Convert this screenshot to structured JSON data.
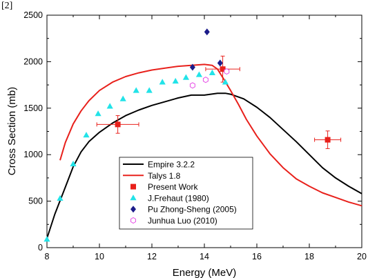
{
  "header_fragment": "[2]",
  "colors": {
    "empire": "#000000",
    "talys": "#e8201b",
    "present": "#e8201b",
    "frehaut": "#22e3e8",
    "pu": "#1c1c8a",
    "luo": "#e64ce6"
  },
  "chart_data": {
    "type": "line",
    "xlabel": "Energy (MeV)",
    "ylabel": "Cross Section (mb)",
    "xlim": [
      8,
      20
    ],
    "ylim": [
      0,
      2500
    ],
    "xticks": [
      8,
      10,
      12,
      14,
      16,
      18,
      20
    ],
    "yticks": [
      0,
      500,
      1000,
      1500,
      2000,
      2500
    ],
    "xtick_labels": [
      "8",
      "10",
      "12",
      "14",
      "16",
      "18",
      "20"
    ],
    "ytick_labels": [
      "0",
      "500",
      "1000",
      "1500",
      "2000",
      "2500"
    ],
    "grid": false,
    "legend_position": "bottom-center",
    "series": [
      {
        "name": "Empire 3.2.2",
        "kind": "line",
        "color": "#000000",
        "x": [
          8.0,
          8.3,
          8.7,
          9.0,
          9.3,
          9.6,
          10.0,
          10.5,
          11.0,
          11.5,
          12.0,
          12.5,
          13.0,
          13.5,
          14.0,
          14.5,
          14.8,
          15.0,
          15.5,
          16.0,
          16.5,
          17.0,
          17.5,
          18.0,
          18.5,
          19.0,
          19.5,
          20.0
        ],
        "y": [
          100,
          360,
          650,
          870,
          1030,
          1140,
          1240,
          1340,
          1420,
          1480,
          1530,
          1570,
          1610,
          1640,
          1640,
          1660,
          1660,
          1650,
          1600,
          1510,
          1400,
          1270,
          1140,
          1000,
          860,
          750,
          660,
          580
        ]
      },
      {
        "name": "Talys 1.8",
        "kind": "line",
        "color": "#e8201b",
        "x": [
          8.5,
          8.7,
          9.0,
          9.3,
          9.6,
          10.0,
          10.5,
          11.0,
          11.5,
          12.0,
          12.5,
          13.0,
          13.5,
          14.0,
          14.3,
          14.5,
          14.7,
          15.0,
          15.3,
          15.6,
          16.0,
          16.5,
          17.0,
          17.5,
          18.0,
          18.5,
          19.0,
          19.5,
          20.0
        ],
        "y": [
          940,
          1130,
          1330,
          1470,
          1580,
          1690,
          1780,
          1840,
          1880,
          1910,
          1930,
          1950,
          1960,
          1970,
          1960,
          1920,
          1830,
          1690,
          1540,
          1380,
          1200,
          1010,
          860,
          740,
          660,
          590,
          540,
          490,
          450
        ]
      },
      {
        "name": "Present Work",
        "kind": "marker",
        "marker": "square",
        "color": "#e8201b",
        "points": [
          {
            "x": 10.7,
            "y": 1325,
            "xerr": 0.8,
            "yerr": 95
          },
          {
            "x": 14.7,
            "y": 1920,
            "xerr": 0.65,
            "yerr": 140
          },
          {
            "x": 18.7,
            "y": 1160,
            "xerr": 0.5,
            "yerr": 95
          }
        ]
      },
      {
        "name": "J.Frehaut (1980)",
        "kind": "marker",
        "marker": "triangle",
        "color": "#22e3e8",
        "points": [
          {
            "x": 8.0,
            "y": 90
          },
          {
            "x": 8.5,
            "y": 530
          },
          {
            "x": 9.0,
            "y": 900
          },
          {
            "x": 9.5,
            "y": 1210
          },
          {
            "x": 9.95,
            "y": 1440
          },
          {
            "x": 10.4,
            "y": 1520
          },
          {
            "x": 10.9,
            "y": 1600
          },
          {
            "x": 11.4,
            "y": 1690
          },
          {
            "x": 11.9,
            "y": 1690
          },
          {
            "x": 12.4,
            "y": 1780
          },
          {
            "x": 12.9,
            "y": 1790
          },
          {
            "x": 13.3,
            "y": 1830
          },
          {
            "x": 13.8,
            "y": 1860
          },
          {
            "x": 14.3,
            "y": 1880
          },
          {
            "x": 14.8,
            "y": 1780
          }
        ]
      },
      {
        "name": "Pu Zhong-Sheng (2005)",
        "kind": "marker",
        "marker": "diamond",
        "color": "#1c1c8a",
        "points": [
          {
            "x": 13.55,
            "y": 1940
          },
          {
            "x": 14.1,
            "y": 2320
          },
          {
            "x": 14.6,
            "y": 1985
          }
        ]
      },
      {
        "name": "Junhua Luo (2010)",
        "kind": "marker",
        "marker": "hexagon-open",
        "color": "#e64ce6",
        "points": [
          {
            "x": 13.55,
            "y": 1745
          },
          {
            "x": 14.05,
            "y": 1805
          },
          {
            "x": 14.85,
            "y": 1895
          }
        ]
      }
    ]
  }
}
